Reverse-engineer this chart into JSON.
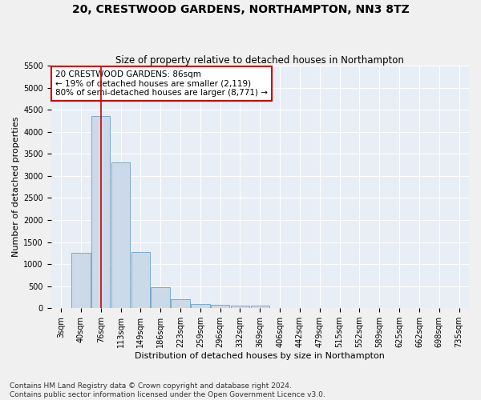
{
  "title": "20, CRESTWOOD GARDENS, NORTHAMPTON, NN3 8TZ",
  "subtitle": "Size of property relative to detached houses in Northampton",
  "xlabel": "Distribution of detached houses by size in Northampton",
  "ylabel": "Number of detached properties",
  "categories": [
    "3sqm",
    "40sqm",
    "76sqm",
    "113sqm",
    "149sqm",
    "186sqm",
    "223sqm",
    "259sqm",
    "296sqm",
    "332sqm",
    "369sqm",
    "406sqm",
    "442sqm",
    "479sqm",
    "515sqm",
    "552sqm",
    "589sqm",
    "625sqm",
    "662sqm",
    "698sqm",
    "735sqm"
  ],
  "values": [
    0,
    1260,
    4350,
    3300,
    1280,
    480,
    200,
    100,
    80,
    50,
    55,
    0,
    0,
    0,
    0,
    0,
    0,
    0,
    0,
    0,
    0
  ],
  "bar_color": "#ccd9e8",
  "bar_edge_color": "#7aaacb",
  "annotation_box_color": "#cc0000",
  "vline_color": "#cc0000",
  "vline_x": 2.0,
  "annotation_text": "20 CRESTWOOD GARDENS: 86sqm\n← 19% of detached houses are smaller (2,119)\n80% of semi-detached houses are larger (8,771) →",
  "ylim": [
    0,
    5500
  ],
  "yticks": [
    0,
    500,
    1000,
    1500,
    2000,
    2500,
    3000,
    3500,
    4000,
    4500,
    5000,
    5500
  ],
  "footnote": "Contains HM Land Registry data © Crown copyright and database right 2024.\nContains public sector information licensed under the Open Government Licence v3.0.",
  "background_color": "#e8eef5",
  "grid_color": "#ffffff",
  "fig_bg_color": "#f0f0f0",
  "title_fontsize": 10,
  "subtitle_fontsize": 8.5,
  "axis_label_fontsize": 8,
  "tick_fontsize": 7,
  "annotation_fontsize": 7.5,
  "footnote_fontsize": 6.5
}
